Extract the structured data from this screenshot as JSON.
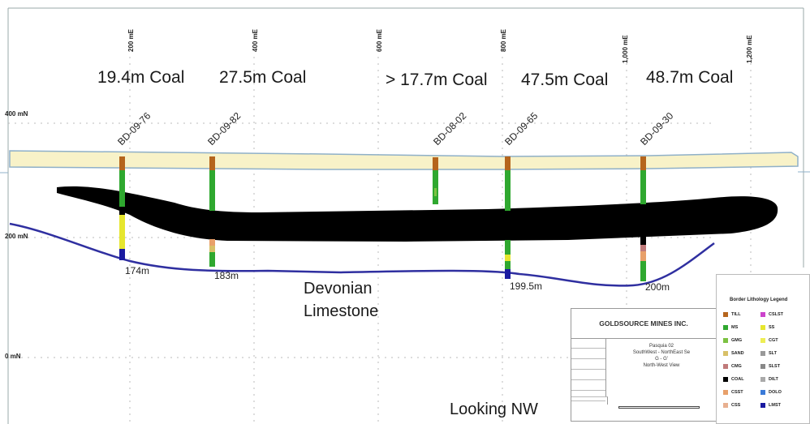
{
  "coal_labels": [
    "19.4m Coal",
    "27.5m Coal",
    "> 17.7m Coal",
    "47.5m Coal",
    "48.7m Coal"
  ],
  "eastings": [
    "200 mE",
    "400 mE",
    "600 mE",
    "800 mE",
    "1,000 mE",
    "1,200 mE"
  ],
  "northings": [
    "400 mN",
    "200 mN",
    "0 mN"
  ],
  "holes": [
    {
      "name": "BD-09-76",
      "depth": "174m"
    },
    {
      "name": "BD-09-82",
      "depth": "183m"
    },
    {
      "name": "BD-08-02",
      "depth": ""
    },
    {
      "name": "BD-09-65",
      "depth": "199.5m"
    },
    {
      "name": "BD-09-30",
      "depth": "200m"
    }
  ],
  "unit_label": [
    "Devonian",
    "Limestone"
  ],
  "view_label": "Looking NW",
  "colors": {
    "till": "#f8f2c8",
    "coal": "#000000",
    "limestone_contact": "#2f2fa0",
    "till_outline": "#8fb0c8",
    "ms": "#2fa82f"
  },
  "legend": {
    "title": "Border Lithology Legend",
    "items": [
      {
        "code": "TILL",
        "color": "#b5651d"
      },
      {
        "code": "CSLST",
        "color": "#cc44cc"
      },
      {
        "code": "MS",
        "color": "#2fa82f"
      },
      {
        "code": "SS",
        "color": "#e6e62e"
      },
      {
        "code": "GMG",
        "color": "#7cc242"
      },
      {
        "code": "CGT",
        "color": "#eeee55"
      },
      {
        "code": "SAND",
        "color": "#d8c068"
      },
      {
        "code": "SLT",
        "color": "#999999"
      },
      {
        "code": "CMG",
        "color": "#c07a7a"
      },
      {
        "code": "SLST",
        "color": "#888888"
      },
      {
        "code": "COAL",
        "color": "#000000"
      },
      {
        "code": "DILT",
        "color": "#aaaaaa"
      },
      {
        "code": "CSST",
        "color": "#e8a06a"
      },
      {
        "code": "DOLO",
        "color": "#3a7ad8"
      },
      {
        "code": "CSS",
        "color": "#e8b090"
      },
      {
        "code": "LMST",
        "color": "#1a1aa0"
      }
    ]
  },
  "title_block": {
    "company": "GOLDSOURCE MINES INC.",
    "project": [
      "Pasquia 02",
      "SouthWest - NorthEast Se",
      "G - G'",
      "North-West View"
    ]
  }
}
